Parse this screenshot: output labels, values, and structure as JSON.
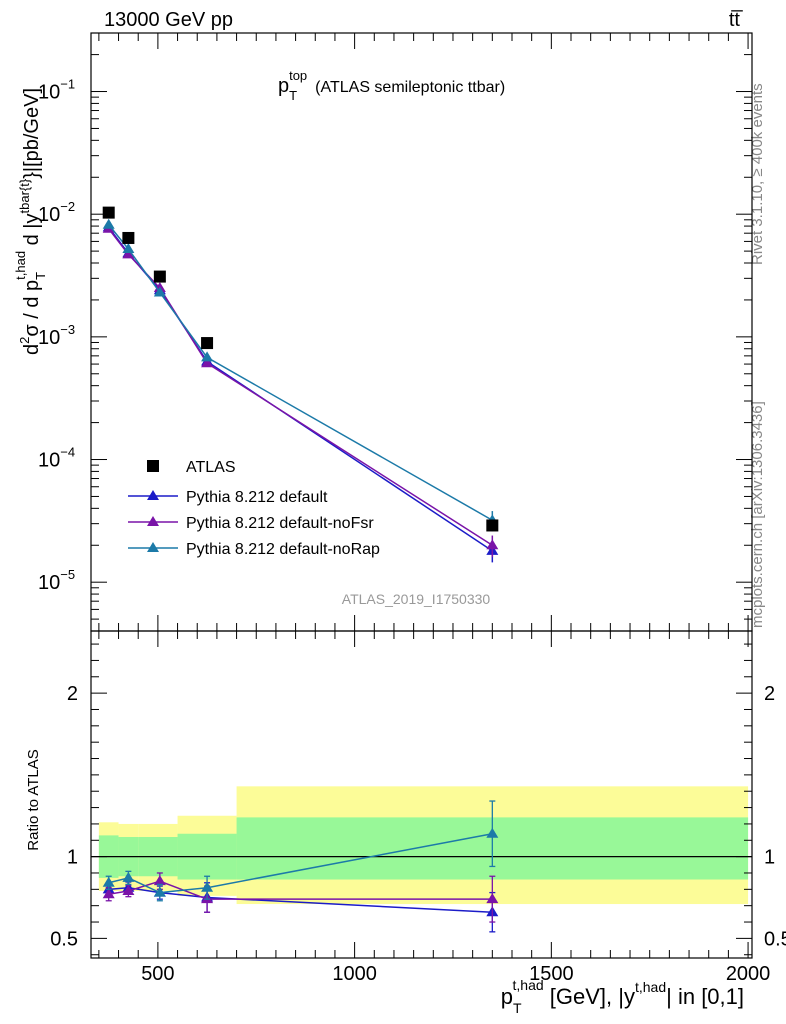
{
  "header": {
    "left_label": "13000 GeV pp",
    "right_label": "tt̅"
  },
  "side_labels": {
    "rivet": "Rivet 3.1.10, ≥ 400k events",
    "mcplots": "mcplots.cern.ch [arXiv:1306.3436]"
  },
  "chart_data": [
    {
      "type": "line",
      "panel": "main",
      "scale": "log",
      "title": "p_T^top (ATLAS semileptonic ttbar)",
      "title_main": "p",
      "title_sub": "T",
      "title_sup": "top",
      "title_rest": "(ATLAS semileptonic ttbar)",
      "watermark": "ATLAS_2019_I1750330",
      "xlim": [
        330,
        2010
      ],
      "ylim": [
        4e-06,
        0.3
      ],
      "ylabel": "d²σ / dp_T^{t,had} d|y^{tbar{t}}| [pb/GeV]",
      "ylabel_parts": {
        "d2": "d",
        "sup2": "2",
        "sigma": "σ /  d p",
        "subT": "T",
        "suptHad": "t,had",
        "d2b": " d |y",
        "supTbar": "tbar{t}",
        "tail": "}|[pb/GeV]"
      },
      "yticks": [
        {
          "value": 1e-05,
          "base": "10",
          "exp": "−5"
        },
        {
          "value": 0.0001,
          "base": "10",
          "exp": "−4"
        },
        {
          "value": 0.001,
          "base": "10",
          "exp": "−3"
        },
        {
          "value": 0.01,
          "base": "10",
          "exp": "−2"
        },
        {
          "value": 0.1,
          "base": "10",
          "exp": "−1"
        }
      ],
      "data": {
        "name": "ATLAS",
        "x": [
          375,
          425,
          505,
          625,
          1350
        ],
        "y": [
          0.0103,
          0.0064,
          0.0031,
          0.00089,
          2.9e-05
        ]
      },
      "series": [
        {
          "name": "Pythia 8.212 default",
          "color": "#1c1cc8",
          "x": [
            375,
            425,
            505,
            625,
            1350
          ],
          "y": [
            0.0078,
            0.0048,
            0.0024,
            0.00063,
            1.8e-05
          ],
          "yerr": [
            0,
            0,
            0,
            0,
            3.5e-06
          ]
        },
        {
          "name": "Pythia 8.212 default-noFsr",
          "color": "#7a14a8",
          "x": [
            375,
            425,
            505,
            625,
            1350
          ],
          "y": [
            0.0076,
            0.0047,
            0.0025,
            0.00061,
            2e-05
          ],
          "yerr": [
            0,
            0,
            0,
            0,
            4e-06
          ]
        },
        {
          "name": "Pythia 8.212 default-noRap",
          "color": "#1c7aa8",
          "x": [
            375,
            425,
            505,
            625,
            1350
          ],
          "y": [
            0.0082,
            0.0052,
            0.0023,
            0.00068,
            3.2e-05
          ],
          "yerr": [
            0,
            0,
            0,
            0,
            6e-06
          ]
        }
      ],
      "legend": {
        "placement": "bottom-left",
        "entries": [
          "ATLAS",
          "Pythia 8.212 default",
          "Pythia 8.212 default-noFsr",
          "Pythia 8.212 default-noRap"
        ]
      }
    },
    {
      "type": "line",
      "panel": "ratio",
      "scale": "linear",
      "ylabel": "Ratio to ATLAS",
      "xlabel": "p_T^{t,had} [GeV], |y^{t,had}| in [0,1]",
      "xlabel_parts": {
        "p": "p",
        "subT": "T",
        "sup1": "t,had",
        "mid": " [GeV], |y",
        "sup2": "t,had",
        "tail": "| in [0,1]"
      },
      "xlim": [
        330,
        2010
      ],
      "ylim": [
        0.38,
        2.38
      ],
      "yticks": [
        0.5,
        1,
        2
      ],
      "ytick_labels": [
        "0.5",
        "1",
        "2"
      ],
      "xticks": [
        500,
        1000,
        1500,
        2000
      ],
      "xtick_labels": [
        "500",
        "1000",
        "1500",
        "2000"
      ],
      "bands": [
        {
          "x0": 350,
          "x1": 400,
          "inner": [
            0.87,
            1.13
          ],
          "outer": [
            0.79,
            1.21
          ]
        },
        {
          "x0": 400,
          "x1": 450,
          "inner": [
            0.88,
            1.12
          ],
          "outer": [
            0.79,
            1.2
          ]
        },
        {
          "x0": 450,
          "x1": 550,
          "inner": [
            0.88,
            1.12
          ],
          "outer": [
            0.79,
            1.2
          ]
        },
        {
          "x0": 550,
          "x1": 700,
          "inner": [
            0.86,
            1.14
          ],
          "outer": [
            0.76,
            1.25
          ]
        },
        {
          "x0": 700,
          "x1": 2000,
          "inner": [
            0.86,
            1.24
          ],
          "outer": [
            0.71,
            1.43
          ]
        }
      ],
      "band_colors": {
        "inner": "#98f898",
        "outer": "#fcfc98"
      },
      "series": [
        {
          "name": "Pythia 8.212 default",
          "color": "#1c1cc8",
          "x": [
            375,
            425,
            505,
            625,
            1350
          ],
          "y": [
            0.8,
            0.81,
            0.78,
            0.75,
            0.66
          ],
          "yerr": [
            0.04,
            0.035,
            0.04,
            0.09,
            0.12
          ]
        },
        {
          "name": "Pythia 8.212 default-noFsr",
          "color": "#7a14a8",
          "x": [
            375,
            425,
            505,
            625,
            1350
          ],
          "y": [
            0.77,
            0.79,
            0.85,
            0.74,
            0.74
          ],
          "yerr": [
            0.04,
            0.035,
            0.05,
            0.08,
            0.14
          ]
        },
        {
          "name": "Pythia 8.212 default-noRap",
          "color": "#1c7aa8",
          "x": [
            375,
            425,
            505,
            625,
            1350
          ],
          "y": [
            0.84,
            0.87,
            0.78,
            0.81,
            1.14
          ],
          "yerr": [
            0.04,
            0.04,
            0.05,
            0.07,
            0.2
          ]
        }
      ]
    }
  ]
}
